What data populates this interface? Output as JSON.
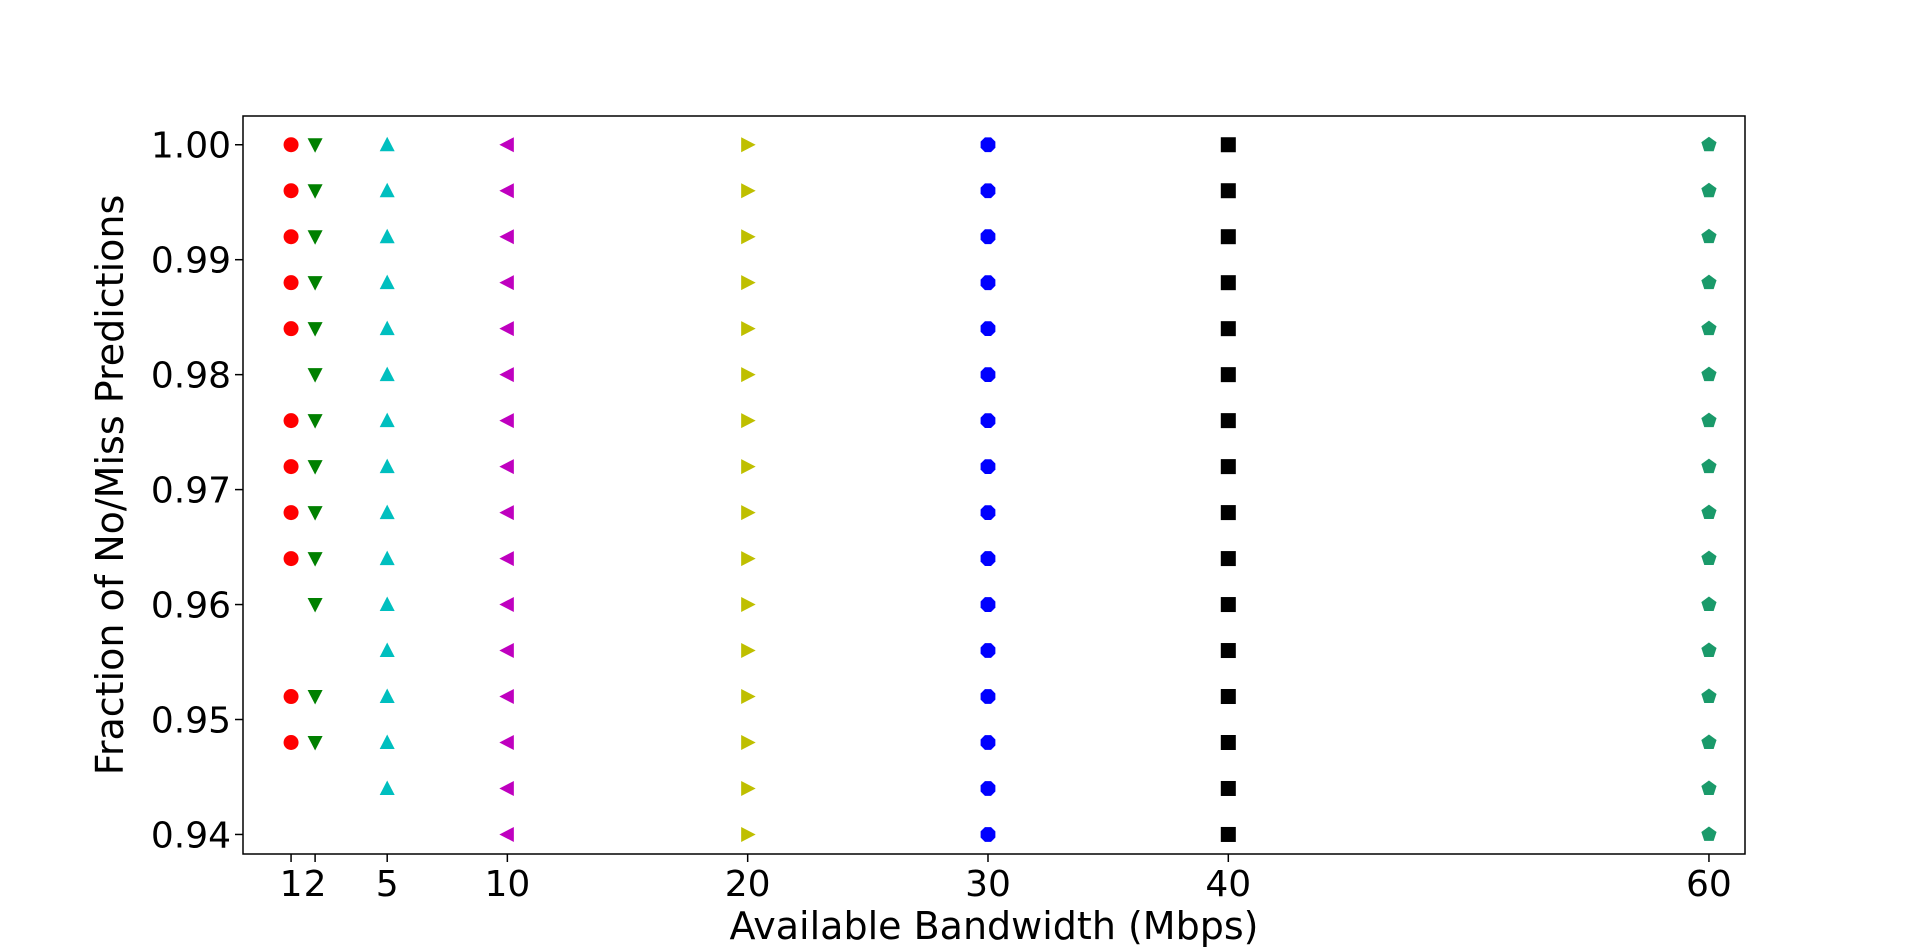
{
  "chart_data": {
    "type": "scatter",
    "title": "",
    "xlabel": "Available Bandwidth (Mbps)",
    "ylabel": "Fraction of No/Miss Predictions",
    "xlim": [
      -1,
      61.5
    ],
    "ylim": [
      0.9383,
      1.0025
    ],
    "x_ticks": [
      1,
      2,
      5,
      10,
      20,
      30,
      40,
      60
    ],
    "x_tick_labels": [
      "1",
      "2",
      "5",
      "10",
      "20",
      "30",
      "40",
      "60"
    ],
    "y_ticks": [
      0.94,
      0.95,
      0.96,
      0.97,
      0.98,
      0.99,
      1.0
    ],
    "y_tick_labels": [
      "0.94",
      "0.95",
      "0.96",
      "0.97",
      "0.98",
      "0.99",
      "1.00"
    ],
    "grid": false,
    "legend": false,
    "series": [
      {
        "marker": "circle",
        "color": "#ff0000",
        "x": 1,
        "y": [
          1.0,
          0.996,
          0.992,
          0.988,
          0.984,
          0.976,
          0.972,
          0.968,
          0.964,
          0.952,
          0.948
        ]
      },
      {
        "marker": "triangle-down",
        "color": "#008000",
        "x": 2,
        "y": [
          1.0,
          0.996,
          0.992,
          0.988,
          0.984,
          0.98,
          0.976,
          0.972,
          0.968,
          0.964,
          0.96,
          0.952,
          0.948
        ]
      },
      {
        "marker": "triangle-up",
        "color": "#00bfbf",
        "x": 5,
        "y": [
          1.0,
          0.996,
          0.992,
          0.988,
          0.984,
          0.98,
          0.976,
          0.972,
          0.968,
          0.964,
          0.96,
          0.956,
          0.952,
          0.948,
          0.944
        ]
      },
      {
        "marker": "triangle-left",
        "color": "#bf00bf",
        "x": 10,
        "y": [
          1.0,
          0.996,
          0.992,
          0.988,
          0.984,
          0.98,
          0.976,
          0.972,
          0.968,
          0.964,
          0.96,
          0.956,
          0.952,
          0.948,
          0.944,
          0.94
        ]
      },
      {
        "marker": "triangle-right",
        "color": "#bfbf00",
        "x": 20,
        "y": [
          1.0,
          0.996,
          0.992,
          0.988,
          0.984,
          0.98,
          0.976,
          0.972,
          0.968,
          0.964,
          0.96,
          0.956,
          0.952,
          0.948,
          0.944,
          0.94
        ]
      },
      {
        "marker": "octagon",
        "color": "#0000ff",
        "x": 30,
        "y": [
          1.0,
          0.996,
          0.992,
          0.988,
          0.984,
          0.98,
          0.976,
          0.972,
          0.968,
          0.964,
          0.96,
          0.956,
          0.952,
          0.948,
          0.944,
          0.94
        ]
      },
      {
        "marker": "square",
        "color": "#000000",
        "x": 40,
        "y": [
          1.0,
          0.996,
          0.992,
          0.988,
          0.984,
          0.98,
          0.976,
          0.972,
          0.968,
          0.964,
          0.96,
          0.956,
          0.952,
          0.948,
          0.944,
          0.94
        ]
      },
      {
        "marker": "pentagon",
        "color": "#1a9a6a",
        "x": 60,
        "y": [
          1.0,
          0.996,
          0.992,
          0.988,
          0.984,
          0.98,
          0.976,
          0.972,
          0.968,
          0.964,
          0.96,
          0.956,
          0.952,
          0.948,
          0.944,
          0.94
        ]
      }
    ]
  }
}
